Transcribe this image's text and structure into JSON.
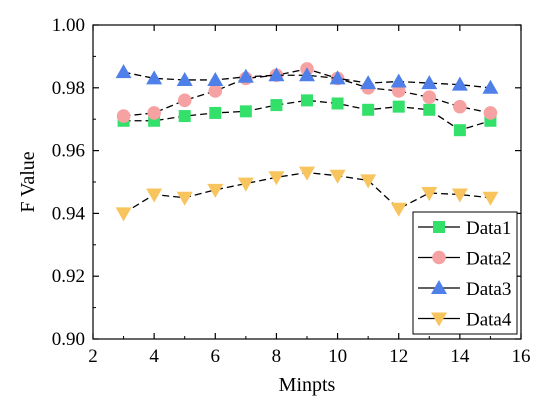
{
  "chart_data": {
    "type": "line",
    "xlabel": "Minpts",
    "ylabel": "F Value",
    "xlim": [
      2,
      16
    ],
    "ylim": [
      0.9,
      1.0
    ],
    "xticks": [
      2,
      4,
      6,
      8,
      10,
      12,
      14,
      16
    ],
    "yticks": [
      0.9,
      0.92,
      0.94,
      0.96,
      0.98,
      1.0
    ],
    "xtick_labels": [
      "2",
      "4",
      "6",
      "8",
      "10",
      "12",
      "14",
      "16"
    ],
    "ytick_labels": [
      "0.90",
      "0.92",
      "0.94",
      "0.96",
      "0.98",
      "1.00"
    ],
    "legend_position": "bottom-right",
    "grid": false,
    "x": [
      3,
      4,
      5,
      6,
      7,
      8,
      9,
      10,
      11,
      12,
      13,
      14,
      15
    ],
    "series": [
      {
        "name": "Data1",
        "marker": "square",
        "color": "#33e06a",
        "values": [
          0.9695,
          0.9695,
          0.971,
          0.972,
          0.9725,
          0.9745,
          0.976,
          0.975,
          0.973,
          0.974,
          0.973,
          0.9665,
          0.9695
        ]
      },
      {
        "name": "Data2",
        "marker": "circle",
        "color": "#f6a2a2",
        "values": [
          0.971,
          0.972,
          0.976,
          0.979,
          0.983,
          0.984,
          0.986,
          0.983,
          0.98,
          0.979,
          0.977,
          0.974,
          0.972
        ]
      },
      {
        "name": "Data3",
        "marker": "triangle-up",
        "color": "#4f7fe8",
        "values": [
          0.985,
          0.983,
          0.9825,
          0.9825,
          0.9835,
          0.984,
          0.984,
          0.983,
          0.9815,
          0.982,
          0.9815,
          0.981,
          0.98
        ]
      },
      {
        "name": "Data4",
        "marker": "triangle-down",
        "color": "#f8c45e",
        "values": [
          0.94,
          0.946,
          0.945,
          0.9475,
          0.9495,
          0.9515,
          0.953,
          0.952,
          0.9505,
          0.9415,
          0.9465,
          0.946,
          0.945
        ]
      }
    ]
  }
}
